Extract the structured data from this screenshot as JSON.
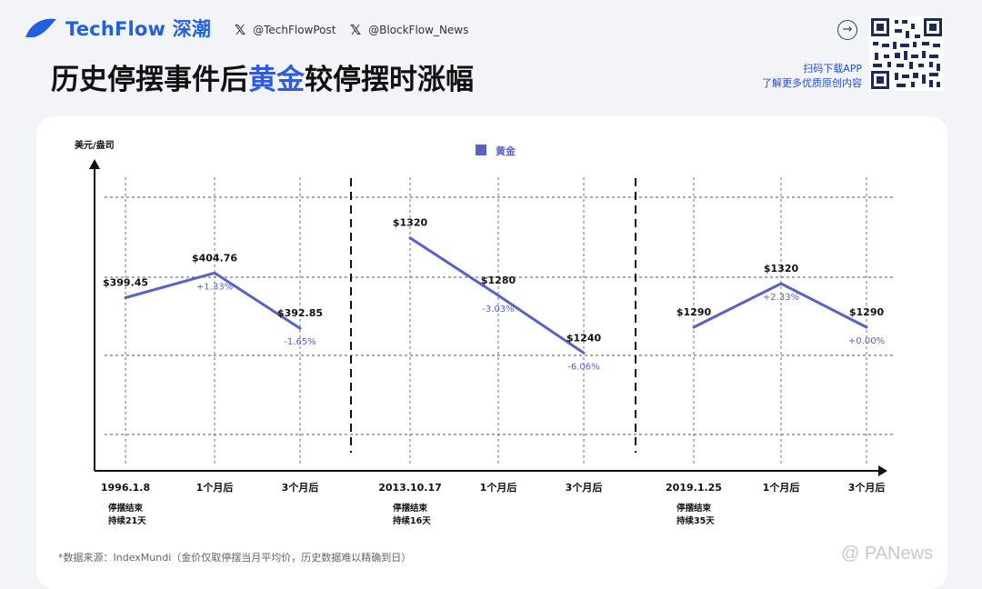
{
  "header": {
    "brand": "TechFlow 深潮",
    "social": [
      {
        "icon": "x-logo-icon",
        "handle": "@TechFlowPost"
      },
      {
        "icon": "x-logo-icon",
        "handle": "@BlockFlow_News"
      }
    ],
    "title_pre": "历史停摆事件后",
    "title_highlight": "黄金",
    "title_post": "较停摆时涨幅",
    "download_line1": "扫码下载APP",
    "download_line2": "了解更多优质原创内容",
    "accent_color": "#2d5be3"
  },
  "chart_data": {
    "type": "line",
    "ylabel": "美元/盎司",
    "legend": {
      "label": "黄金",
      "color": "#5a62c8",
      "position": "top-center"
    },
    "grid": true,
    "periods": [
      {
        "categories": [
          "1996.1.8",
          "1个月后",
          "3个月后"
        ],
        "values": [
          399.45,
          404.76,
          392.85
        ],
        "value_labels": [
          "$399.45",
          "$404.76",
          "$392.85"
        ],
        "change_labels": [
          "",
          "+1.33%",
          "-1.65%"
        ],
        "note_line1": "停摆结束",
        "note_line2": "持续21天"
      },
      {
        "categories": [
          "2013.10.17",
          "1个月后",
          "3个月后"
        ],
        "values": [
          1320,
          1280,
          1240
        ],
        "value_labels": [
          "$1320",
          "$1280",
          "$1240"
        ],
        "change_labels": [
          "",
          "-3.03%",
          "-6.06%"
        ],
        "note_line1": "停摆结束",
        "note_line2": "持续16天"
      },
      {
        "categories": [
          "2019.1.25",
          "1个月后",
          "3个月后"
        ],
        "values": [
          1290,
          1320,
          1290
        ],
        "value_labels": [
          "$1290",
          "$1320",
          "$1290"
        ],
        "change_labels": [
          "",
          "+2.33%",
          "+0.00%"
        ],
        "note_line1": "停摆结束",
        "note_line2": "持续35天"
      }
    ]
  },
  "footnote": "*数据来源：IndexMundi（金价仅取停摆当月平均价，历史数据难以精确到日）",
  "watermark": "@ PANews"
}
